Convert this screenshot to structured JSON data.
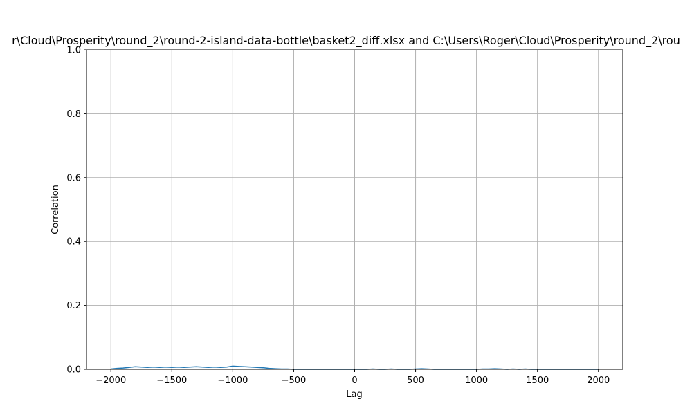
{
  "chart_data": {
    "type": "line",
    "title": "r\\Cloud\\Prosperity\\round_2\\round-2-island-data-bottle\\basket2_diff.xlsx and C:\\Users\\Roger\\Cloud\\Prosperity\\round_2\\rou",
    "xlabel": "Lag",
    "ylabel": "Correlation",
    "xlim": [
      -2200,
      2200
    ],
    "ylim": [
      0.0,
      1.0
    ],
    "x_ticks": [
      -2000,
      -1500,
      -1000,
      -500,
      0,
      500,
      1000,
      1500,
      2000
    ],
    "x_tick_labels": [
      "−2000",
      "−1500",
      "−1000",
      "−500",
      "0",
      "500",
      "1000",
      "1500",
      "2000"
    ],
    "y_ticks": [
      0.0,
      0.2,
      0.4,
      0.6,
      0.8,
      1.0
    ],
    "y_tick_labels": [
      "0.0",
      "0.2",
      "0.4",
      "0.6",
      "0.8",
      "1.0"
    ],
    "grid": true,
    "series": [
      {
        "color": "#1f77b4",
        "x": [
          -2000,
          -1950,
          -1900,
          -1850,
          -1800,
          -1750,
          -1700,
          -1650,
          -1600,
          -1550,
          -1500,
          -1450,
          -1400,
          -1350,
          -1300,
          -1250,
          -1200,
          -1150,
          -1100,
          -1050,
          -1000,
          -950,
          -900,
          -850,
          -800,
          -750,
          -700,
          -650,
          -600,
          -550,
          -500,
          -450,
          -400,
          -350,
          -300,
          -250,
          -200,
          -150,
          -100,
          -50,
          0,
          50,
          100,
          150,
          200,
          250,
          300,
          350,
          400,
          450,
          500,
          550,
          600,
          650,
          700,
          750,
          800,
          850,
          900,
          950,
          1000,
          1050,
          1100,
          1150,
          1200,
          1250,
          1300,
          1350,
          1400,
          1450,
          1500,
          1550,
          1600,
          1650,
          1700,
          1750,
          1800,
          1850,
          1900,
          1950,
          2000
        ],
        "y": [
          0.001,
          0.003,
          0.004,
          0.006,
          0.008,
          0.007,
          0.006,
          0.007,
          0.006,
          0.007,
          0.006,
          0.007,
          0.006,
          0.007,
          0.008,
          0.007,
          0.006,
          0.007,
          0.006,
          0.007,
          0.01,
          0.009,
          0.008,
          0.007,
          0.006,
          0.005,
          0.003,
          0.002,
          0.001,
          0.001,
          0.0,
          0.0,
          0.0,
          0.0,
          0.0,
          0.0,
          0.0,
          0.0,
          0.0,
          0.0,
          0.0,
          0.0,
          0.0,
          0.001,
          0.0,
          0.0,
          0.001,
          0.0,
          0.0,
          0.0,
          0.001,
          0.002,
          0.001,
          0.0,
          0.0,
          0.0,
          0.0,
          0.0,
          0.0,
          0.0,
          0.0,
          0.001,
          0.001,
          0.002,
          0.001,
          0.0,
          0.001,
          0.0,
          0.001,
          0.0,
          0.0,
          0.0,
          0.0,
          0.0,
          0.0,
          0.0,
          0.0,
          0.0,
          0.0,
          0.0,
          0.0
        ]
      }
    ]
  }
}
